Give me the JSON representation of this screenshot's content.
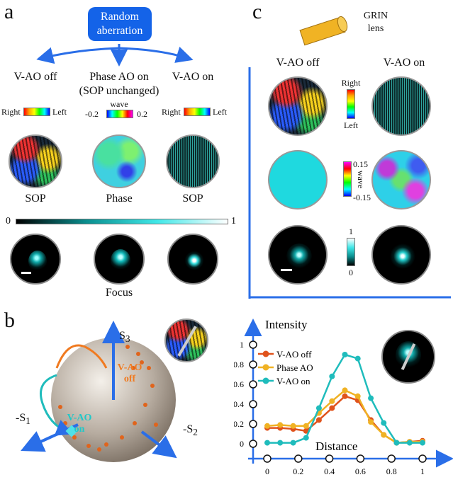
{
  "panel_a": {
    "label": "a",
    "aberration_box": [
      "Random",
      "aberration"
    ],
    "columns": [
      {
        "title": "V-AO off",
        "subtitle": "",
        "map_label": "SOP"
      },
      {
        "title": "Phase AO on",
        "subtitle": "(SOP unchanged)",
        "map_label": "Phase"
      },
      {
        "title": "V-AO on",
        "subtitle": "",
        "map_label": "SOP"
      }
    ],
    "sop_colorbar": {
      "left": "Right",
      "right": "Left"
    },
    "phase_colorbar": {
      "title": "wave",
      "min": "-0.2",
      "max": "0.2"
    },
    "intensity_colorbar": {
      "min": "0",
      "max": "1"
    },
    "focus_label": "Focus"
  },
  "panel_b": {
    "label": "b",
    "axes": {
      "s3": "S",
      "s3_sub": "3",
      "s1": "-S",
      "s1_sub": "1",
      "s2": "-S",
      "s2_sub": "2"
    },
    "sphere_labels": {
      "off": [
        "V-AO",
        "off"
      ],
      "on": [
        "V-AO",
        "on"
      ]
    }
  },
  "panel_c": {
    "label": "c",
    "lens_label": [
      "GRIN",
      "lens"
    ],
    "columns": [
      "V-AO off",
      "V-AO on"
    ],
    "sop_colorbar": {
      "top": "Right",
      "bottom": "Left"
    },
    "phase_colorbar": {
      "title": "wave",
      "max": "0.15",
      "min": "-0.15"
    },
    "intensity_colorbar": {
      "max": "1",
      "min": "0"
    }
  },
  "chart_data": {
    "type": "line",
    "xlabel": "Distance",
    "ylabel": "Intensity",
    "xlim": [
      0,
      1
    ],
    "ylim": [
      0,
      1
    ],
    "x_ticks": [
      "0",
      "0.2",
      "0.4",
      "0.6",
      "0.8",
      "1"
    ],
    "y_ticks": [
      "0",
      "0.2",
      "0.4",
      "0.6",
      "0.8",
      "1"
    ],
    "legend_position": "top-left",
    "x": [
      0,
      0.083,
      0.167,
      0.25,
      0.333,
      0.417,
      0.5,
      0.583,
      0.667,
      0.75,
      0.833,
      0.917,
      1.0
    ],
    "series": [
      {
        "name": "V-AO off",
        "color": "#e0531c",
        "values": [
          0.16,
          0.16,
          0.15,
          0.13,
          0.24,
          0.36,
          0.48,
          0.44,
          0.24,
          0.09,
          0.01,
          0.02,
          0.03
        ]
      },
      {
        "name": "Phase AO",
        "color": "#f0b224",
        "values": [
          0.18,
          0.19,
          0.18,
          0.18,
          0.31,
          0.43,
          0.54,
          0.48,
          0.22,
          0.09,
          0.01,
          0.02,
          0.02
        ]
      },
      {
        "name": "V-AO on",
        "color": "#1fbcbc",
        "values": [
          0.01,
          0.01,
          0.01,
          0.06,
          0.36,
          0.68,
          0.9,
          0.86,
          0.46,
          0.21,
          0.01,
          0.01,
          0.01
        ]
      }
    ]
  }
}
